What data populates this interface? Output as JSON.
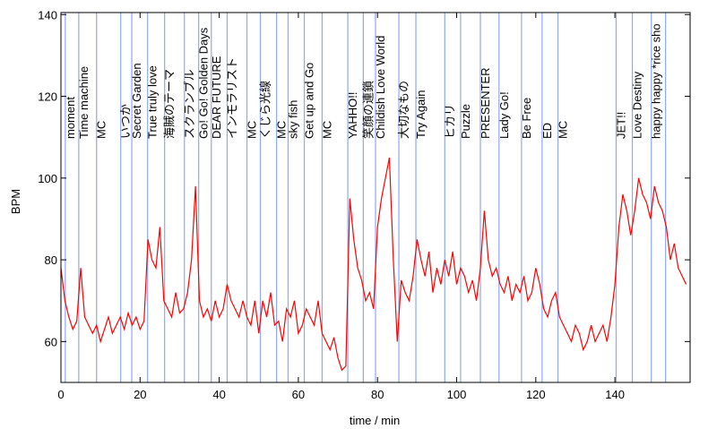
{
  "chart_data": {
    "type": "line",
    "xlabel": "time / min",
    "ylabel": "BPM",
    "xlim": [
      0,
      159
    ],
    "ylim": [
      50,
      140.5
    ],
    "xticks": [
      0,
      20,
      40,
      60,
      80,
      100,
      120,
      140
    ],
    "yticks": [
      60,
      80,
      100,
      120,
      140
    ],
    "marker_color": "#8fa8f0",
    "markers": [
      {
        "x": 1.1,
        "label": "moment"
      },
      {
        "x": 4.5,
        "label": "Time machine"
      },
      {
        "x": 9,
        "label": "MC"
      },
      {
        "x": 15.1,
        "label": "いつか"
      },
      {
        "x": 17.9,
        "label": "Secret Garden"
      },
      {
        "x": 21.9,
        "label": "True truly love"
      },
      {
        "x": 26.2,
        "label": "海賊のテーマ"
      },
      {
        "x": 31.2,
        "label": "スクランブル"
      },
      {
        "x": 34.8,
        "label": "Go! Go! Golden Days"
      },
      {
        "x": 38,
        "label": "DEAR FUTURE"
      },
      {
        "x": 42,
        "label": "インモラリスト"
      },
      {
        "x": 47,
        "label": "MC"
      },
      {
        "x": 50.4,
        "label": "くじら光線"
      },
      {
        "x": 54.5,
        "label": "MC"
      },
      {
        "x": 57.4,
        "label": "sky fish"
      },
      {
        "x": 61.5,
        "label": "Get up and Go"
      },
      {
        "x": 66,
        "label": "MC"
      },
      {
        "x": 72.5,
        "label": "YAHHO!!"
      },
      {
        "x": 76.4,
        "label": "笑顔の連鎖"
      },
      {
        "x": 79.5,
        "label": "Childish Love World"
      },
      {
        "x": 85.4,
        "label": "大切なもの"
      },
      {
        "x": 89.7,
        "label": "Try Again"
      },
      {
        "x": 97,
        "label": "ヒカリ"
      },
      {
        "x": 101,
        "label": "Puzzle"
      },
      {
        "x": 106,
        "label": "PRESENTER"
      },
      {
        "x": 110.7,
        "label": "Lady Go!"
      },
      {
        "x": 116.4,
        "label": "Be Free"
      },
      {
        "x": 121.6,
        "label": "ED"
      },
      {
        "x": 125.6,
        "label": "MC"
      },
      {
        "x": 140.3,
        "label": "JET!!"
      },
      {
        "x": 144.4,
        "label": "Love Destiny"
      },
      {
        "x": 149.2,
        "label": "happy happy *rice sho"
      },
      {
        "x": 152.8,
        "label": null
      }
    ],
    "series": [
      {
        "name": null,
        "color": "#ff0000",
        "x": [
          0,
          1,
          2,
          3,
          4,
          5,
          6,
          7,
          8,
          9,
          10,
          11,
          12,
          13,
          14,
          15,
          16,
          17,
          18,
          19,
          20,
          21,
          22,
          23,
          24,
          25,
          26,
          27,
          28,
          29,
          30,
          31,
          32,
          33,
          34,
          35,
          36,
          37,
          38,
          39,
          40,
          41,
          42,
          43,
          44,
          45,
          46,
          47,
          48,
          49,
          50,
          51,
          52,
          53,
          54,
          55,
          56,
          57,
          58,
          59,
          60,
          61,
          62,
          63,
          64,
          65,
          66,
          67,
          68,
          69,
          70,
          71,
          72,
          73,
          74,
          75,
          76,
          77,
          78,
          79,
          80,
          81,
          82,
          83,
          84,
          85,
          86,
          87,
          88,
          89,
          90,
          91,
          92,
          93,
          94,
          95,
          96,
          97,
          98,
          99,
          100,
          101,
          102,
          103,
          104,
          105,
          106,
          107,
          108,
          109,
          110,
          111,
          112,
          113,
          114,
          115,
          116,
          117,
          118,
          119,
          120,
          121,
          122,
          123,
          124,
          125,
          126,
          127,
          128,
          129,
          130,
          131,
          132,
          133,
          134,
          135,
          136,
          137,
          138,
          139,
          140,
          141,
          142,
          143,
          144,
          145,
          146,
          147,
          148,
          149,
          150,
          151,
          152,
          153,
          154,
          155,
          156,
          157,
          158
        ],
        "values": [
          78,
          70,
          66,
          63,
          65,
          78,
          66,
          64,
          62,
          64,
          60,
          63,
          66,
          62,
          64,
          66,
          63,
          67,
          64,
          66,
          63,
          65,
          85,
          80,
          78,
          88,
          70,
          68,
          66,
          72,
          67,
          68,
          72,
          80,
          98,
          70,
          66,
          68,
          65,
          70,
          66,
          68,
          74,
          70,
          68,
          66,
          70,
          66,
          64,
          70,
          62,
          70,
          66,
          72,
          64,
          65,
          60,
          68,
          66,
          70,
          62,
          64,
          68,
          66,
          64,
          70,
          62,
          60,
          58,
          61,
          56,
          53,
          54,
          95,
          85,
          78,
          75,
          70,
          72,
          68,
          88,
          95,
          100,
          105,
          80,
          60,
          75,
          72,
          70,
          76,
          85,
          80,
          76,
          82,
          72,
          78,
          74,
          80,
          76,
          82,
          74,
          78,
          76,
          72,
          75,
          70,
          78,
          92,
          80,
          76,
          78,
          74,
          72,
          76,
          70,
          74,
          72,
          76,
          70,
          72,
          78,
          74,
          68,
          66,
          70,
          72,
          66,
          64,
          62,
          60,
          64,
          62,
          58,
          60,
          64,
          60,
          62,
          64,
          60,
          66,
          74,
          88,
          96,
          92,
          86,
          92,
          100,
          96,
          94,
          90,
          98,
          94,
          92,
          88,
          80,
          84,
          78,
          76,
          74
        ]
      }
    ]
  }
}
